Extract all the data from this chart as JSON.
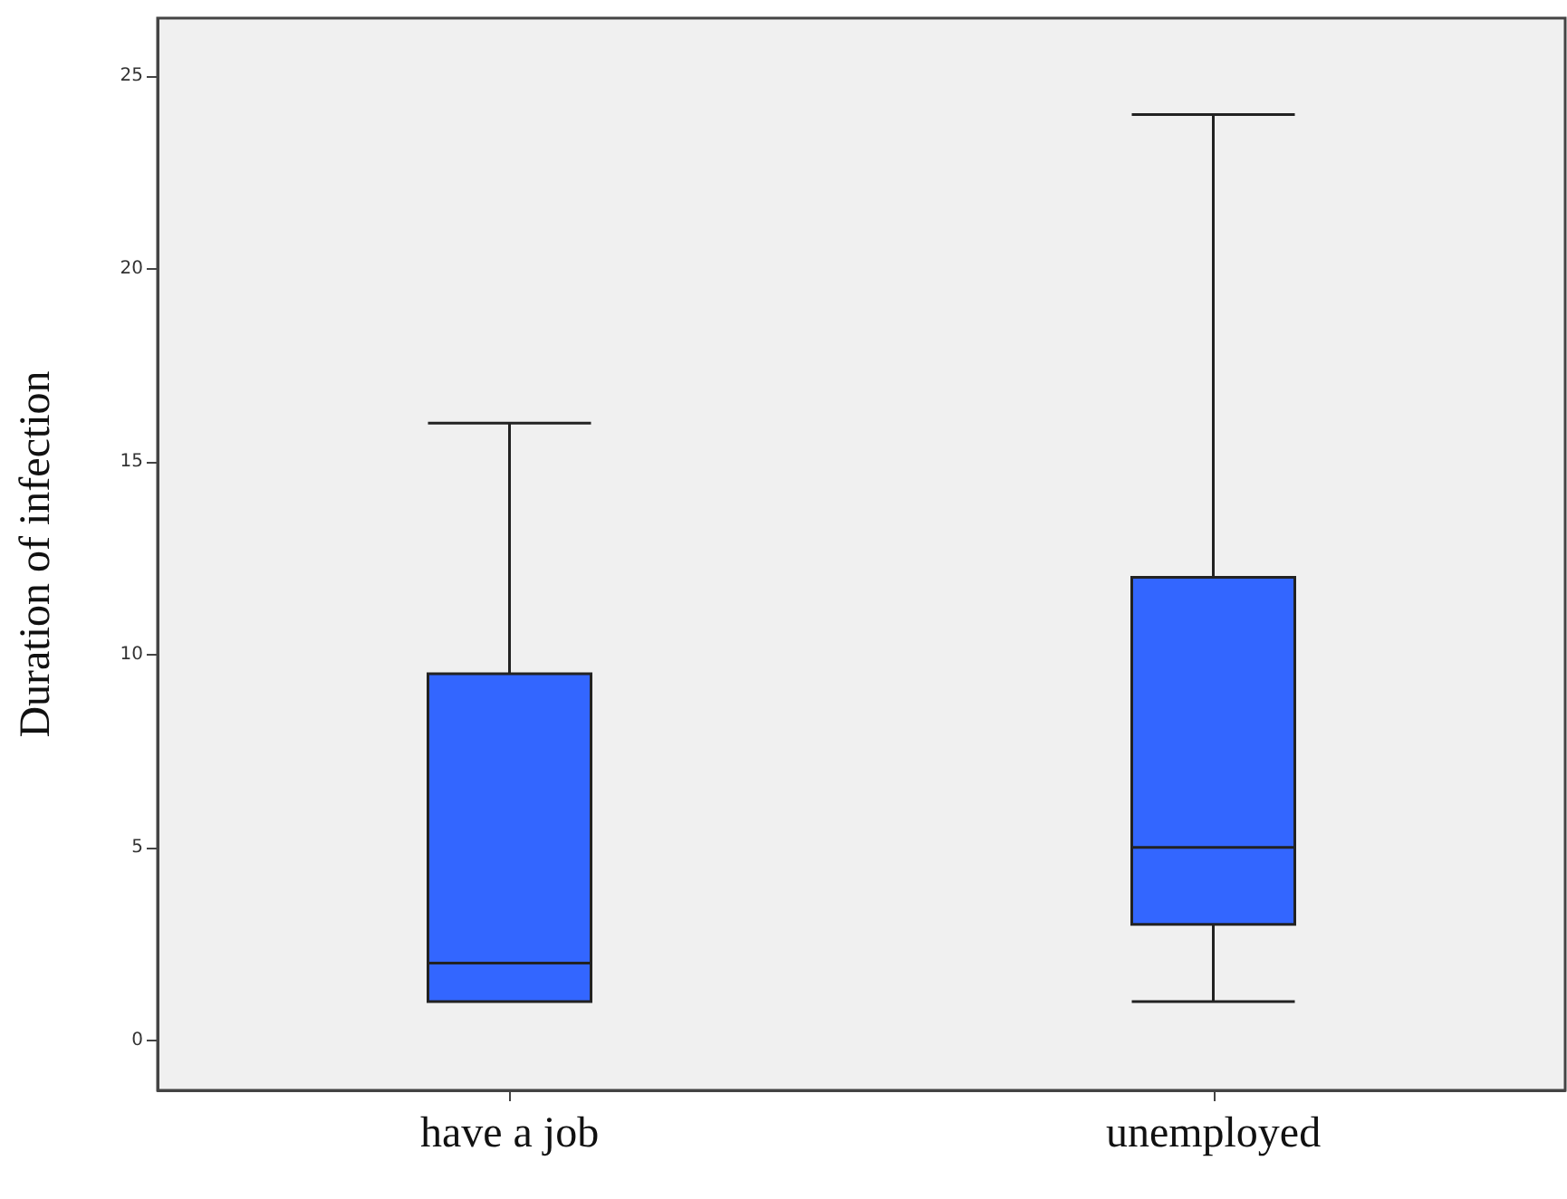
{
  "chart_data": {
    "type": "box",
    "ylabel": "Duration of infection",
    "categories": [
      "have a job",
      "unemployed"
    ],
    "series": [
      {
        "color": "#3366ff",
        "boxes": [
          {
            "low": 1,
            "q1": 1,
            "median": 2,
            "q3": 9.5,
            "high": 16
          },
          {
            "low": 1,
            "q1": 3,
            "median": 5,
            "q3": 12,
            "high": 24
          }
        ]
      }
    ],
    "ylim": [
      -1.3,
      26.5
    ],
    "yticks": [
      0,
      5,
      10,
      15,
      20,
      25
    ]
  }
}
